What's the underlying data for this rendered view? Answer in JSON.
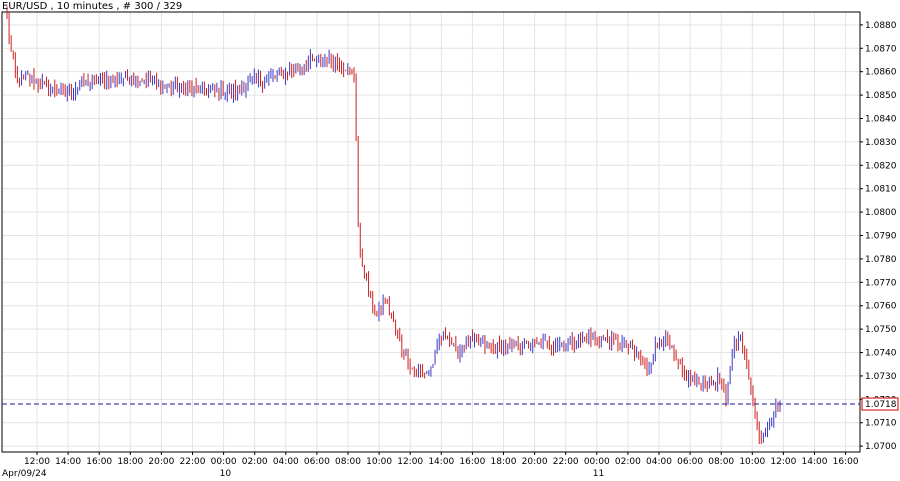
{
  "chart_data": {
    "type": "ohlc",
    "title": "EUR/USD , 10 minutes , # 300 / 329",
    "x_ticks": [
      "12:00",
      "14:00",
      "16:00",
      "18:00",
      "20:00",
      "22:00",
      "00:00",
      "02:00",
      "04:00",
      "06:00",
      "08:00",
      "10:00",
      "12:00",
      "14:00",
      "16:00",
      "18:00",
      "20:00",
      "22:00",
      "00:00",
      "02:00",
      "04:00",
      "06:00",
      "08:00",
      "10:00",
      "12:00",
      "14:00",
      "16:00"
    ],
    "date_labels": [
      {
        "label": "Apr/09/24",
        "under_tick": 0
      },
      {
        "label": "10",
        "under_tick": 6
      },
      {
        "label": "11",
        "under_tick": 18
      }
    ],
    "y_ticks": [
      "1.0700",
      "1.0710",
      "1.0720",
      "1.0730",
      "1.0740",
      "1.0750",
      "1.0760",
      "1.0770",
      "1.0780",
      "1.0790",
      "1.0800",
      "1.0810",
      "1.0820",
      "1.0830",
      "1.0840",
      "1.0850",
      "1.0860",
      "1.0870",
      "1.0880"
    ],
    "ylim": [
      1.06975,
      1.08855
    ],
    "current_price": 1.0718,
    "current_price_label": "1.0718",
    "colors": {
      "up": "#3a3ac8",
      "down": "#cc2020",
      "last_price": "#1a1a9a",
      "badge": "#cc0000"
    },
    "grid": true,
    "key_levels": [
      [
        0,
        1.0882
      ],
      [
        2,
        1.0868
      ],
      [
        5,
        1.0855
      ],
      [
        10,
        1.0858
      ],
      [
        20,
        1.0853
      ],
      [
        28,
        1.0851
      ],
      [
        40,
        1.0856
      ],
      [
        60,
        1.0858
      ],
      [
        80,
        1.0853
      ],
      [
        100,
        1.0852
      ],
      [
        108,
        1.0851
      ],
      [
        115,
        1.0855
      ],
      [
        130,
        1.0858
      ],
      [
        145,
        1.0864
      ],
      [
        155,
        1.0866
      ],
      [
        163,
        1.0862
      ],
      [
        167,
        1.0857
      ],
      [
        168,
        1.0832
      ],
      [
        169,
        1.0795
      ],
      [
        170,
        1.078
      ],
      [
        172,
        1.0775
      ],
      [
        175,
        1.0762
      ],
      [
        178,
        1.0756
      ],
      [
        182,
        1.0762
      ],
      [
        186,
        1.0752
      ],
      [
        190,
        1.0742
      ],
      [
        195,
        1.0733
      ],
      [
        200,
        1.0731
      ],
      [
        204,
        1.0733
      ],
      [
        208,
        1.0745
      ],
      [
        212,
        1.0748
      ],
      [
        216,
        1.074
      ],
      [
        222,
        1.0745
      ],
      [
        235,
        1.0742
      ],
      [
        250,
        1.0743
      ],
      [
        265,
        1.0744
      ],
      [
        280,
        1.0746
      ],
      [
        290,
        1.0745
      ],
      [
        298,
        1.0743
      ],
      [
        304,
        1.0738
      ],
      [
        308,
        1.0733
      ],
      [
        312,
        1.0742
      ],
      [
        316,
        1.0747
      ],
      [
        320,
        1.074
      ],
      [
        325,
        1.0731
      ],
      [
        332,
        1.0727
      ],
      [
        338,
        1.0726
      ],
      [
        343,
        1.0729
      ],
      [
        346,
        1.0718
      ],
      [
        349,
        1.0742
      ],
      [
        352,
        1.0748
      ],
      [
        356,
        1.0735
      ],
      [
        359,
        1.072
      ],
      [
        362,
        1.0703
      ],
      [
        366,
        1.071
      ],
      [
        370,
        1.0716
      ],
      [
        372,
        1.0718
      ]
    ]
  }
}
